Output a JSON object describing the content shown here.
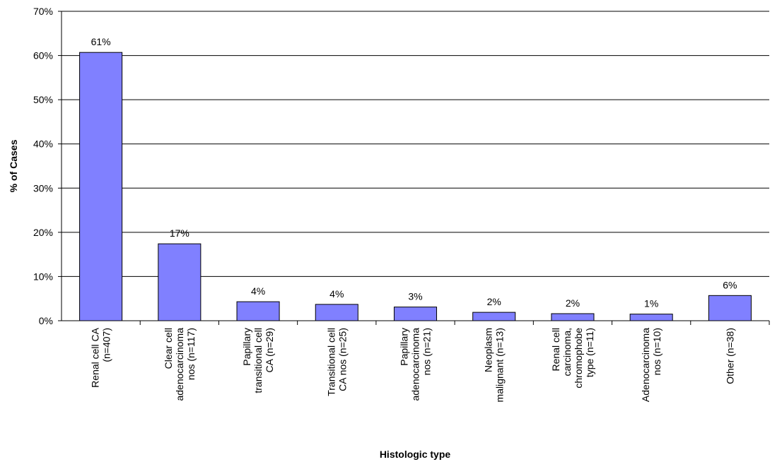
{
  "chart_data": {
    "type": "bar",
    "x_label": "Histologic type",
    "y_label": "% of Cases",
    "categories": [
      "Renal cell CA\n(n=407)",
      "Clear cell\nadenocarcinoma\nnos (n=117)",
      "Papillary\ntransitional cell\nCA (n=29)",
      "Transitional cell\nCA nos (n=25)",
      "Papillary\nadenocarcinoma\nnos (n=21)",
      "Neoplasm\nmalignant (n=13)",
      "Renal cell\ncarcinoma,\nchromophobe\ntype (n=11)",
      "Adenocarcinoma\nnos (n=10)",
      "Other (n=38)"
    ],
    "values": [
      60.7,
      17.4,
      4.3,
      3.7,
      3.1,
      1.9,
      1.6,
      1.5,
      5.7
    ],
    "value_labels": [
      "61%",
      "17%",
      "4%",
      "4%",
      "3%",
      "2%",
      "2%",
      "1%",
      "6%"
    ],
    "color": "#8080ff",
    "ylim": [
      0,
      70
    ],
    "yticks": [
      {
        "value": 0,
        "label": "0%"
      },
      {
        "value": 10,
        "label": "10%"
      },
      {
        "value": 20,
        "label": "20%"
      },
      {
        "value": 30,
        "label": "30%"
      },
      {
        "value": 40,
        "label": "40%"
      },
      {
        "value": 50,
        "label": "50%"
      },
      {
        "value": 60,
        "label": "60%"
      },
      {
        "value": 70,
        "label": "70%"
      }
    ],
    "grid": true
  }
}
